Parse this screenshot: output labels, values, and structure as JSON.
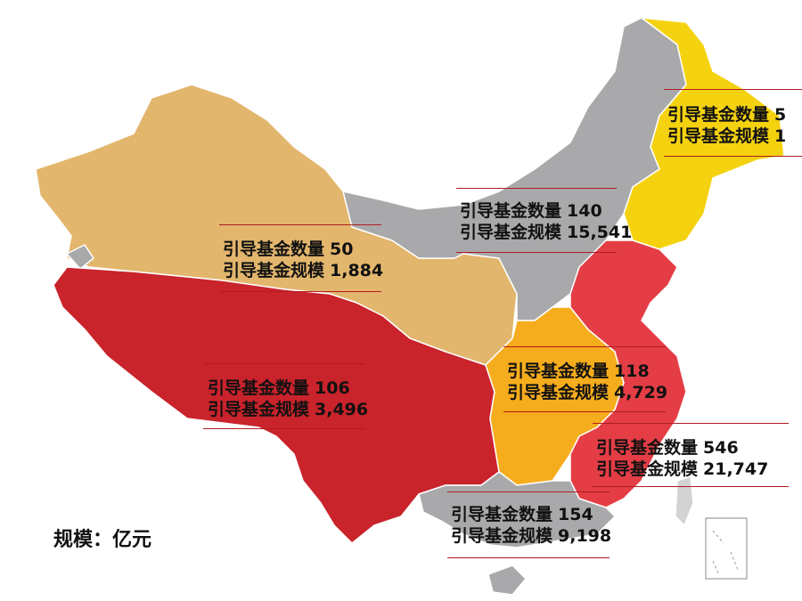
{
  "legend_unit": "规模：亿元",
  "colors": {
    "northeast": "#f5d20f",
    "north": "#a9a9ab",
    "northwest": "#e3b66d",
    "southwest": "#c9232b",
    "central": "#f6ad1d",
    "east": "#e43d45",
    "south": "#a9a9ab",
    "border": "#ffffff"
  },
  "regions": [
    {
      "id": "northeast",
      "count_label": "引导基金数量",
      "count": "5",
      "scale_label": "引导基金规模",
      "scale": "1"
    },
    {
      "id": "north",
      "count_label": "引导基金数量",
      "count": "140",
      "scale_label": "引导基金规模",
      "scale": "15,541"
    },
    {
      "id": "northwest",
      "count_label": "引导基金数量",
      "count": "50",
      "scale_label": "引导基金规模",
      "scale": "1,884"
    },
    {
      "id": "southwest",
      "count_label": "引导基金数量",
      "count": "106",
      "scale_label": "引导基金规模",
      "scale": "3,496"
    },
    {
      "id": "central",
      "count_label": "引导基金数量",
      "count": "118",
      "scale_label": "引导基金规模",
      "scale": "4,729"
    },
    {
      "id": "east",
      "count_label": "引导基金数量",
      "count": "546",
      "scale_label": "引导基金规模",
      "scale": "21,747"
    },
    {
      "id": "south",
      "count_label": "引导基金数量",
      "count": "154",
      "scale_label": "引导基金规模",
      "scale": "9,198"
    }
  ]
}
